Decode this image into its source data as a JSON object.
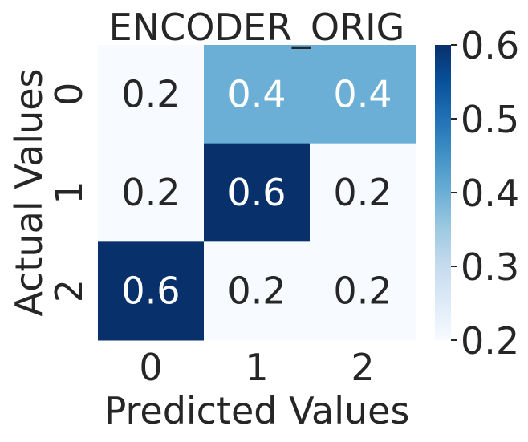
{
  "chart_data": {
    "type": "heatmap",
    "title": "ENCODER_ORIG",
    "xlabel": "Predicted Values",
    "ylabel": "Actual Values",
    "x_categories": [
      "0",
      "1",
      "2"
    ],
    "y_categories": [
      "0",
      "1",
      "2"
    ],
    "values": [
      [
        0.2,
        0.4,
        0.4
      ],
      [
        0.2,
        0.6,
        0.2
      ],
      [
        0.6,
        0.2,
        0.2
      ]
    ],
    "cell_labels": [
      [
        "0.2",
        "0.4",
        "0.4"
      ],
      [
        "0.2",
        "0.6",
        "0.2"
      ],
      [
        "0.6",
        "0.2",
        "0.2"
      ]
    ],
    "colorbar": {
      "range": [
        0.2,
        0.6
      ],
      "ticks": [
        0.2,
        0.3,
        0.4,
        0.5,
        0.6
      ],
      "tick_labels": [
        "0.2",
        "0.3",
        "0.4",
        "0.5",
        "0.6"
      ]
    },
    "colormap": "Blues",
    "colors": {
      "low": "#f7fbff",
      "mid": "#6baed6",
      "high": "#08306b",
      "dark_text": "#262626",
      "light_text": "#ffffff"
    },
    "grid": false
  }
}
